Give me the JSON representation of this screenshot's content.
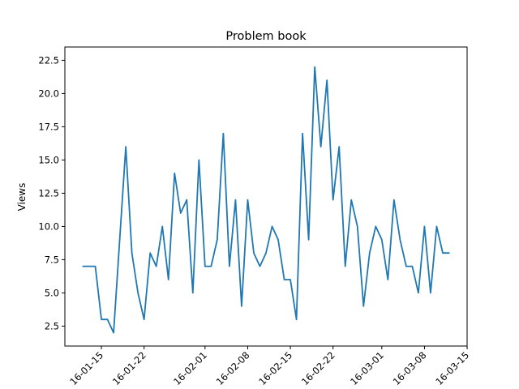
{
  "chart_data": {
    "type": "line",
    "title": "Problem book",
    "xlabel": "",
    "ylabel": "Views",
    "x_start": "2016-01-12",
    "x_tick_labels": [
      "16-01-15",
      "16-01-22",
      "16-02-01",
      "16-02-08",
      "16-02-15",
      "16-02-22",
      "16-03-01",
      "16-03-08",
      "16-03-15"
    ],
    "y_ticks": [
      2.5,
      5.0,
      7.5,
      10.0,
      12.5,
      15.0,
      17.5,
      20.0,
      22.5
    ],
    "y_tick_labels": [
      "2.5",
      "5.0",
      "7.5",
      "10.0",
      "12.5",
      "15.0",
      "17.5",
      "20.0",
      "22.5"
    ],
    "ylim": [
      1.0,
      23.5
    ],
    "grid": false,
    "series": [
      {
        "name": "",
        "color": "#1f77b4",
        "values": [
          7,
          7,
          7,
          3,
          3,
          2,
          9,
          16,
          8,
          5,
          3,
          8,
          7,
          10,
          6,
          14,
          11,
          12,
          5,
          15,
          7,
          7,
          9,
          17,
          7,
          12,
          4,
          12,
          8,
          7,
          8,
          10,
          9,
          6,
          6,
          3,
          17,
          9,
          22,
          16,
          21,
          12,
          16,
          7,
          12,
          10,
          4,
          8,
          10,
          9,
          6,
          12,
          9,
          7,
          7,
          5,
          10,
          5,
          10,
          8,
          8
        ]
      }
    ]
  }
}
